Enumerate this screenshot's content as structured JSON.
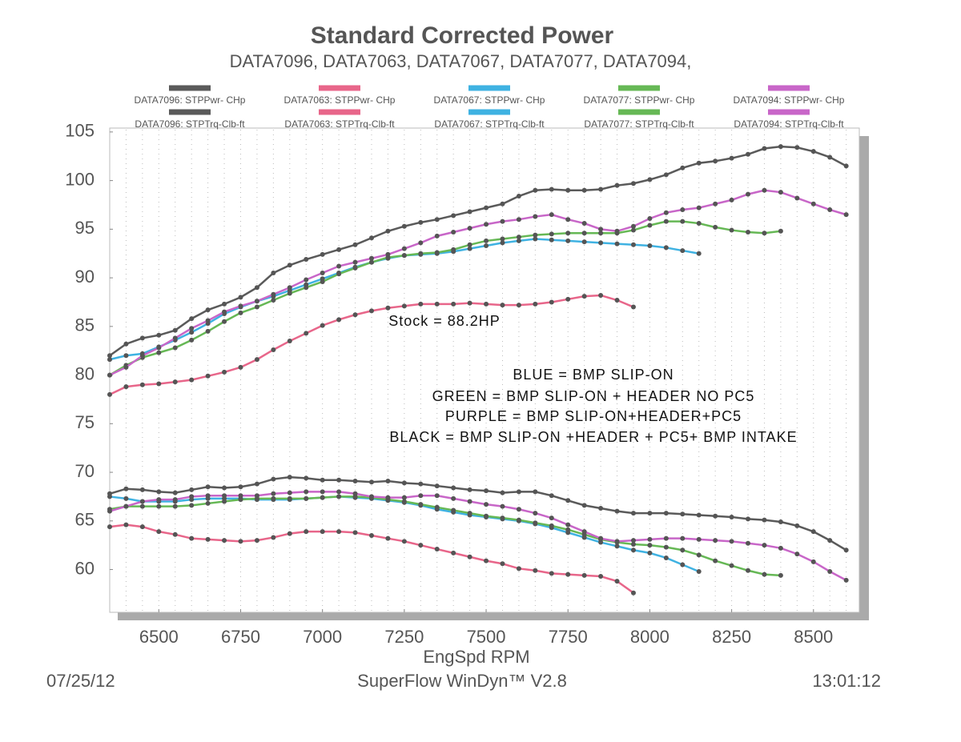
{
  "chart_data": {
    "type": "line",
    "title": "Standard Corrected Power",
    "subtitle": "DATA7096, DATA7063, DATA7067, DATA7077, DATA7094,",
    "x_label": "EngSpd  RPM",
    "footer_left": "07/25/12",
    "footer_center": "SuperFlow WinDyn™ V2.8",
    "footer_right": "13:01:12",
    "annotations": [
      "Stock = 88.2HP",
      "BLUE = BMP SLIP-ON",
      "GREEN = BMP SLIP-ON + HEADER NO PC5",
      "PURPLE = BMP SLIP-ON+HEADER+PC5",
      "BLACK = BMP SLIP-ON +HEADER + PC5+ BMP INTAKE"
    ],
    "xlim": [
      6350,
      8640
    ],
    "ylim": [
      55.6,
      105.4
    ],
    "xticks": [
      6500,
      6750,
      7000,
      7250,
      7500,
      7750,
      8000,
      8250,
      8500
    ],
    "yticks": [
      60,
      65,
      70,
      75,
      80,
      85,
      90,
      95,
      100,
      105
    ],
    "grid": true,
    "markers": true,
    "x": [
      6350,
      6400,
      6450,
      6500,
      6550,
      6600,
      6650,
      6700,
      6750,
      6800,
      6850,
      6900,
      6950,
      7000,
      7050,
      7100,
      7150,
      7200,
      7250,
      7300,
      7350,
      7400,
      7450,
      7500,
      7550,
      7600,
      7650,
      7700,
      7750,
      7800,
      7850,
      7900,
      7950,
      8000,
      8050,
      8100,
      8150,
      8200,
      8250,
      8300,
      8350,
      8400,
      8450,
      8500,
      8550,
      8600
    ],
    "series": [
      {
        "name": "DATA7096: STPPwr- CHp",
        "color": "#5a5a5a",
        "values": [
          82,
          83.2,
          83.8,
          84.1,
          84.6,
          85.8,
          86.7,
          87.3,
          88,
          89,
          90.5,
          91.3,
          91.9,
          92.4,
          92.9,
          93.4,
          94.1,
          94.8,
          95.3,
          95.7,
          96,
          96.4,
          96.8,
          97.2,
          97.6,
          98.4,
          99,
          99.1,
          99,
          99,
          99.1,
          99.5,
          99.7,
          100.1,
          100.6,
          101.3,
          101.8,
          102,
          102.3,
          102.7,
          103.3,
          103.5,
          103.4,
          103,
          102.4,
          101.5
        ]
      },
      {
        "name": "DATA7063: STPPwr- CHp",
        "color": "#e8668a",
        "values": [
          78,
          78.8,
          79,
          79.1,
          79.3,
          79.5,
          79.9,
          80.3,
          80.8,
          81.6,
          82.6,
          83.5,
          84.3,
          85.1,
          85.7,
          86.2,
          86.6,
          86.9,
          87.1,
          87.3,
          87.3,
          87.3,
          87.4,
          87.3,
          87.2,
          87.2,
          87.3,
          87.5,
          87.8,
          88.1,
          88.2,
          87.7,
          87,
          null,
          null,
          null,
          null,
          null,
          null,
          null,
          null,
          null,
          null,
          null,
          null,
          null
        ]
      },
      {
        "name": "DATA7067: STPPwr- CHp",
        "color": "#3fb2e2",
        "values": [
          81.6,
          82,
          82.2,
          82.9,
          83.6,
          84.4,
          85.3,
          86.3,
          87,
          87.6,
          88.1,
          88.7,
          89.3,
          89.9,
          90.5,
          91.1,
          91.6,
          92,
          92.3,
          92.4,
          92.5,
          92.7,
          93,
          93.3,
          93.6,
          93.8,
          94,
          93.9,
          93.8,
          93.7,
          93.6,
          93.5,
          93.4,
          93.3,
          93.1,
          92.8,
          92.5,
          null,
          null,
          null,
          null,
          null,
          null,
          null,
          null,
          null
        ]
      },
      {
        "name": "DATA7077: STPPwr- CHp",
        "color": "#66b855",
        "values": [
          80,
          81,
          81.8,
          82.3,
          82.8,
          83.6,
          84.5,
          85.5,
          86.4,
          87,
          87.7,
          88.4,
          89,
          89.6,
          90.4,
          91,
          91.6,
          92.1,
          92.3,
          92.5,
          92.6,
          92.9,
          93.4,
          93.8,
          94,
          94.2,
          94.4,
          94.5,
          94.6,
          94.6,
          94.6,
          94.6,
          94.9,
          95.4,
          95.8,
          95.8,
          95.6,
          95.2,
          94.9,
          94.7,
          94.6,
          94.8,
          null,
          null,
          null,
          null
        ]
      },
      {
        "name": "DATA7094: STPPwr- CHp",
        "color": "#c866c8",
        "values": [
          80,
          80.8,
          82,
          82.8,
          83.8,
          84.8,
          85.6,
          86.5,
          87.1,
          87.6,
          88.3,
          89,
          89.8,
          90.5,
          91.2,
          91.6,
          92,
          92.4,
          93,
          93.6,
          94.3,
          94.7,
          95.1,
          95.5,
          95.8,
          96,
          96.3,
          96.5,
          96,
          95.6,
          95,
          94.8,
          95.3,
          96.1,
          96.7,
          97,
          97.2,
          97.6,
          98,
          98.6,
          99,
          98.8,
          98.2,
          97.6,
          97,
          96.5
        ]
      },
      {
        "name": "DATA7096: STPTrq-Clb-ft",
        "color": "#5a5a5a",
        "values": [
          67.8,
          68.3,
          68.2,
          68,
          67.9,
          68.2,
          68.5,
          68.4,
          68.5,
          68.8,
          69.3,
          69.5,
          69.4,
          69.2,
          69.2,
          69.1,
          69,
          69.1,
          68.9,
          68.8,
          68.6,
          68.4,
          68.2,
          68.1,
          67.9,
          68,
          68,
          67.6,
          67.1,
          66.6,
          66.3,
          66,
          65.8,
          65.8,
          65.8,
          65.7,
          65.6,
          65.5,
          65.4,
          65.2,
          65.1,
          64.9,
          64.5,
          63.9,
          63,
          62
        ]
      },
      {
        "name": "DATA7063: STPTrq-Clb-ft",
        "color": "#e8668a",
        "values": [
          64.4,
          64.6,
          64.4,
          63.9,
          63.6,
          63.2,
          63.1,
          63,
          62.9,
          63,
          63.3,
          63.7,
          63.9,
          63.9,
          63.9,
          63.8,
          63.5,
          63.2,
          62.9,
          62.5,
          62.1,
          61.7,
          61.3,
          60.9,
          60.6,
          60.1,
          59.9,
          59.6,
          59.5,
          59.4,
          59.3,
          58.8,
          57.6,
          null,
          null,
          null,
          null,
          null,
          null,
          null,
          null,
          null,
          null,
          null,
          null,
          null
        ]
      },
      {
        "name": "DATA7067: STPTrq-Clb-ft",
        "color": "#3fb2e2",
        "values": [
          67.5,
          67.3,
          67,
          67,
          67,
          67.2,
          67.3,
          67.3,
          67.3,
          67.2,
          67.2,
          67.2,
          67.3,
          67.4,
          67.5,
          67.4,
          67.3,
          67.1,
          66.9,
          66.6,
          66.2,
          65.9,
          65.6,
          65.4,
          65.2,
          65,
          64.7,
          64.3,
          63.8,
          63.3,
          62.8,
          62.4,
          62,
          61.7,
          61.2,
          60.5,
          59.8,
          null,
          null,
          null,
          null,
          null,
          null,
          null,
          null,
          null
        ]
      },
      {
        "name": "DATA7077: STPTrq-Clb-ft",
        "color": "#66b855",
        "values": [
          66.2,
          66.5,
          66.5,
          66.5,
          66.5,
          66.6,
          66.8,
          67,
          67.2,
          67.3,
          67.3,
          67.3,
          67.3,
          67.4,
          67.5,
          67.5,
          67.4,
          67.2,
          67,
          66.7,
          66.4,
          66.1,
          65.8,
          65.5,
          65.3,
          65.1,
          64.8,
          64.5,
          64.1,
          63.6,
          63.1,
          62.8,
          62.6,
          62.5,
          62.3,
          62,
          61.5,
          60.9,
          60.4,
          59.9,
          59.5,
          59.4,
          null,
          null,
          null,
          null
        ]
      },
      {
        "name": "DATA7094: STPTrq-Clb-ft",
        "color": "#c866c8",
        "values": [
          66,
          66.5,
          67,
          67.2,
          67.2,
          67.5,
          67.6,
          67.6,
          67.6,
          67.6,
          67.8,
          67.9,
          68,
          68,
          68,
          67.8,
          67.5,
          67.4,
          67.4,
          67.6,
          67.6,
          67.3,
          67,
          66.7,
          66.5,
          66.2,
          65.8,
          65.3,
          64.6,
          63.9,
          63.2,
          62.9,
          63,
          63.1,
          63.2,
          63.2,
          63.1,
          63,
          62.9,
          62.7,
          62.5,
          62.2,
          61.6,
          60.8,
          59.8,
          58.9
        ]
      }
    ]
  }
}
